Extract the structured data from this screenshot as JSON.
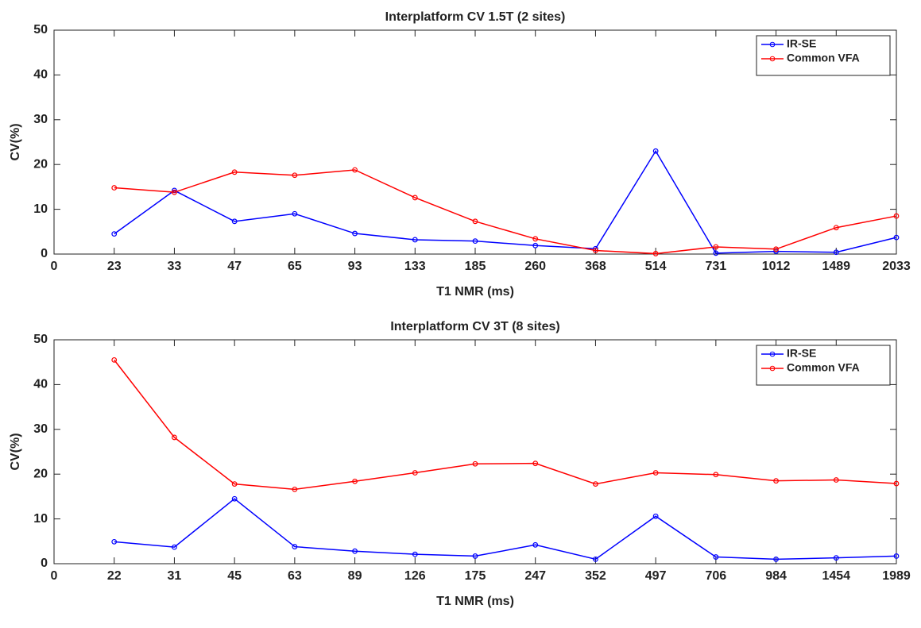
{
  "chart_data": [
    {
      "type": "line",
      "title": "Interplatform CV 1.5T (2 sites)",
      "x_label": "T1 NMR (ms)",
      "y_label": "CV(%)",
      "categories": [
        "0",
        "23",
        "33",
        "47",
        "65",
        "93",
        "133",
        "185",
        "260",
        "368",
        "514",
        "731",
        "1012",
        "1489",
        "2033"
      ],
      "series": [
        {
          "name": "IR-SE",
          "color": "#0000ff",
          "values": [
            null,
            4.5,
            14.2,
            7.3,
            9.0,
            4.6,
            3.2,
            2.9,
            1.9,
            1.2,
            23.0,
            0.2,
            0.6,
            0.4,
            3.7
          ]
        },
        {
          "name": "Common VFA",
          "color": "#ff0000",
          "values": [
            null,
            14.8,
            13.8,
            18.3,
            17.6,
            18.8,
            12.6,
            7.3,
            3.4,
            0.8,
            0.1,
            1.6,
            1.1,
            5.9,
            8.5
          ]
        }
      ],
      "ylim": [
        0,
        50
      ],
      "yticks": [
        0,
        10,
        20,
        30,
        40,
        50
      ],
      "legend": "upper right"
    },
    {
      "type": "line",
      "title": "Interplatform CV 3T (8 sites)",
      "x_label": "T1 NMR (ms)",
      "y_label": "CV(%)",
      "categories": [
        "0",
        "22",
        "31",
        "45",
        "63",
        "89",
        "126",
        "175",
        "247",
        "352",
        "497",
        "706",
        "984",
        "1454",
        "1989"
      ],
      "series": [
        {
          "name": "IR-SE",
          "color": "#0000ff",
          "values": [
            null,
            4.9,
            3.7,
            14.5,
            3.8,
            2.8,
            2.1,
            1.7,
            4.2,
            1.0,
            10.6,
            1.5,
            1.0,
            1.3,
            1.7
          ]
        },
        {
          "name": "Common VFA",
          "color": "#ff0000",
          "values": [
            null,
            45.5,
            28.2,
            17.8,
            16.6,
            18.4,
            20.3,
            22.3,
            22.4,
            17.8,
            20.3,
            19.9,
            18.5,
            18.7,
            17.9
          ]
        }
      ],
      "ylim": [
        0,
        50
      ],
      "yticks": [
        0,
        10,
        20,
        30,
        40,
        50
      ],
      "legend": "upper right"
    }
  ]
}
